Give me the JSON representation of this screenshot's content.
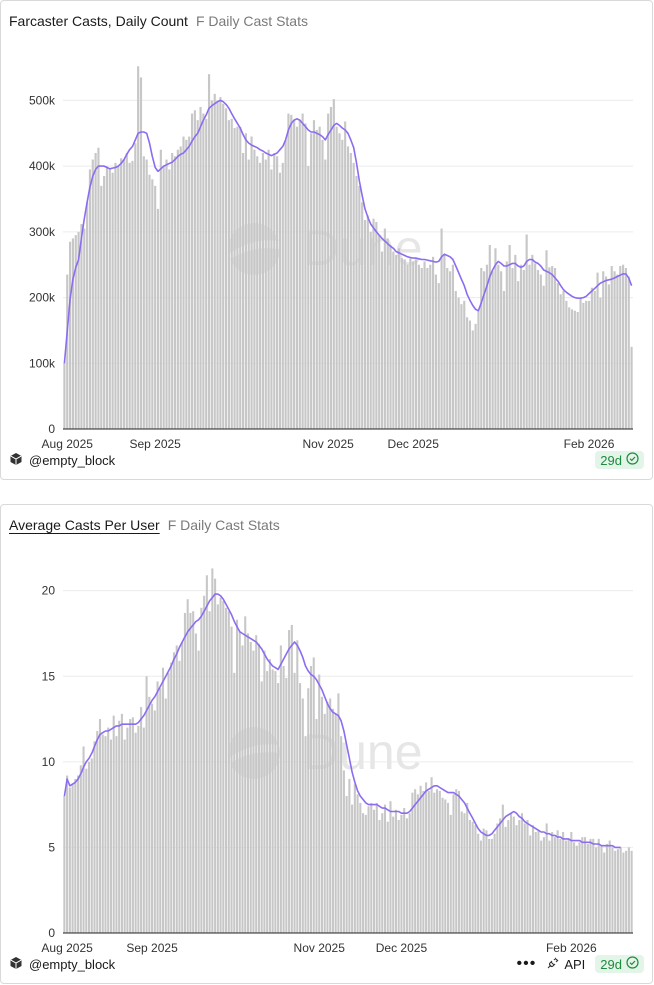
{
  "colors": {
    "bar": "#c7c7c7",
    "line": "#8c6cf0",
    "grid": "#ececec",
    "axis": "#222222",
    "tick": "#333333",
    "watermark": "#e6e6e6",
    "badge_text": "#1f8a3e",
    "badge_bg": "#e3f4e8"
  },
  "panels": [
    {
      "title": "Farcaster Casts, Daily Count",
      "subtitle": "F Daily Cast Stats",
      "author": "@empty_block",
      "badge": "29d",
      "watermark": "Dune",
      "show_api": false
    },
    {
      "title": "Average Casts Per User",
      "subtitle": "F Daily Cast Stats",
      "author": "@empty_block",
      "badge": "29d",
      "watermark": "Dune",
      "show_api": true,
      "api_label": "API"
    }
  ],
  "icons": [
    "cube-icon",
    "check-circle-icon",
    "more-icon",
    "api-icon"
  ],
  "chart_data": [
    {
      "type": "bar",
      "series_line": "moving average",
      "x_start": "2025-07-31",
      "x_ticks": [
        "Aug 2025",
        "Sep 2025",
        "Nov 2025",
        "Dec 2025",
        "Feb 2026"
      ],
      "x_tick_dates": [
        "2025-08-01",
        "2025-09-01",
        "2025-11-01",
        "2025-12-01",
        "2026-02-01"
      ],
      "y_ticks": [
        "0",
        "100k",
        "200k",
        "300k",
        "400k",
        "500k"
      ],
      "y_tick_values": [
        0,
        100000,
        200000,
        300000,
        400000,
        500000
      ],
      "ylim": [
        0,
        560000
      ],
      "grid": true,
      "values": [
        100000,
        235000,
        285000,
        290000,
        295000,
        300000,
        312000,
        305000,
        345000,
        395000,
        410000,
        420000,
        428000,
        370000,
        385000,
        400000,
        395000,
        390000,
        405000,
        400000,
        412000,
        410000,
        420000,
        405000,
        408000,
        435000,
        552000,
        535000,
        415000,
        410000,
        387000,
        380000,
        370000,
        335000,
        425000,
        400000,
        410000,
        395000,
        420000,
        415000,
        425000,
        430000,
        445000,
        440000,
        445000,
        480000,
        485000,
        470000,
        490000,
        480000,
        472000,
        540000,
        500000,
        510000,
        500000,
        505000,
        495000,
        488000,
        470000,
        472000,
        458000,
        460000,
        460000,
        420000,
        450000,
        410000,
        445000,
        425000,
        415000,
        405000,
        420000,
        410000,
        425000,
        395000,
        420000,
        415000,
        390000,
        405000,
        440000,
        480000,
        478000,
        470000,
        460000,
        470000,
        480000,
        465000,
        400000,
        450000,
        470000,
        455000,
        460000,
        440000,
        410000,
        480000,
        490000,
        502000,
        460000,
        450000,
        440000,
        468000,
        430000,
        420000,
        405000,
        385000,
        370000,
        345000,
        318000,
        325000,
        300000,
        320000,
        315000,
        295000,
        270000,
        305000,
        290000,
        280000,
        270000,
        265000,
        275000,
        260000,
        258000,
        250000,
        260000,
        255000,
        258000,
        250000,
        245000,
        255000,
        245000,
        250000,
        262000,
        235000,
        222000,
        305000,
        265000,
        245000,
        240000,
        250000,
        210000,
        200000,
        190000,
        195000,
        170000,
        165000,
        150000,
        160000,
        180000,
        245000,
        240000,
        250000,
        280000,
        240000,
        275000,
        250000,
        240000,
        210000,
        255000,
        280000,
        245000,
        265000,
        225000,
        250000,
        242000,
        296000,
        250000,
        265000,
        252000,
        242000,
        235000,
        218000,
        272000,
        246000,
        248000,
        245000,
        222000,
        205000,
        210000,
        195000,
        185000,
        182000,
        180000,
        178000,
        200000,
        192000,
        195000,
        195000,
        215000,
        210000,
        238000,
        200000,
        240000,
        232000,
        220000,
        248000,
        240000,
        235000,
        248000,
        250000,
        245000,
        232000,
        125000
      ],
      "ma": [
        100000,
        150000,
        198000,
        228000,
        246000,
        258000,
        290000,
        320000,
        345000,
        368000,
        385000,
        395000,
        400000,
        400000,
        400000,
        398000,
        396000,
        397000,
        398000,
        400000,
        404000,
        410000,
        418000,
        425000,
        430000,
        440000,
        450000,
        452000,
        452000,
        450000,
        435000,
        415000,
        398000,
        392000,
        396000,
        400000,
        402000,
        404000,
        406000,
        410000,
        415000,
        418000,
        420000,
        425000,
        430000,
        438000,
        445000,
        450000,
        460000,
        470000,
        478000,
        488000,
        492000,
        495000,
        498000,
        500000,
        498000,
        494000,
        488000,
        480000,
        472000,
        465000,
        458000,
        448000,
        440000,
        435000,
        432000,
        430000,
        428000,
        425000,
        423000,
        420000,
        418000,
        416000,
        418000,
        420000,
        425000,
        430000,
        440000,
        455000,
        465000,
        470000,
        472000,
        470000,
        465000,
        460000,
        455000,
        452000,
        452000,
        450000,
        448000,
        445000,
        440000,
        448000,
        455000,
        462000,
        465000,
        462000,
        458000,
        455000,
        450000,
        440000,
        428000,
        405000,
        378000,
        355000,
        335000,
        322000,
        312000,
        306000,
        300000,
        295000,
        290000,
        286000,
        282000,
        278000,
        275000,
        270000,
        268000,
        266000,
        264000,
        262000,
        261000,
        260000,
        260000,
        259000,
        258000,
        258000,
        257000,
        256000,
        255000,
        254000,
        255000,
        262000,
        266000,
        264000,
        262000,
        258000,
        248000,
        238000,
        228000,
        218000,
        205000,
        196000,
        188000,
        182000,
        180000,
        192000,
        205000,
        218000,
        232000,
        242000,
        250000,
        255000,
        252000,
        248000,
        248000,
        250000,
        252000,
        252000,
        248000,
        246000,
        248000,
        255000,
        258000,
        258000,
        254000,
        252000,
        248000,
        242000,
        240000,
        238000,
        235000,
        230000,
        225000,
        218000,
        212000,
        208000,
        205000,
        202000,
        200000,
        199000,
        199000,
        200000,
        202000,
        206000,
        210000,
        214000,
        218000,
        222000,
        224000,
        226000,
        227000,
        228000,
        230000,
        232000,
        234000,
        236000,
        236000,
        230000,
        218000
      ]
    },
    {
      "type": "bar",
      "series_line": "moving average",
      "x_start": "2025-07-31",
      "x_ticks": [
        "Aug 2025",
        "Sep 2025",
        "Nov 2025",
        "Dec 2025",
        "Feb 2026"
      ],
      "x_tick_dates": [
        "2025-08-01",
        "2025-09-01",
        "2025-11-01",
        "2025-12-01",
        "2026-02-01"
      ],
      "y_ticks": [
        "0",
        "5",
        "10",
        "15",
        "20"
      ],
      "y_tick_values": [
        0,
        5,
        10,
        15,
        20
      ],
      "ylim": [
        0,
        21.5
      ],
      "grid": true,
      "values": [
        8,
        9.2,
        8.5,
        8.7,
        9,
        9.2,
        9.8,
        10.9,
        9.6,
        10,
        10.2,
        11.2,
        11.8,
        12.5,
        11.6,
        11.5,
        12,
        11.3,
        12.7,
        11.5,
        12.4,
        12.8,
        11.3,
        12,
        12.5,
        12.6,
        11.7,
        12.1,
        13.2,
        12,
        15,
        13.8,
        13.4,
        13,
        14.7,
        14.3,
        15.5,
        13.7,
        15.2,
        15.8,
        16.4,
        16.8,
        15.9,
        17,
        18.7,
        19.5,
        18.7,
        18.8,
        17.5,
        16.5,
        19,
        19.7,
        20.9,
        18.8,
        21.3,
        20.7,
        19.2,
        19.6,
        19.4,
        19,
        18.8,
        17.9,
        15.2,
        18.3,
        17.6,
        16.8,
        18.5,
        17.5,
        17,
        16.5,
        17.4,
        16.9,
        14.7,
        16.5,
        15.3,
        16,
        15.4,
        15.3,
        14.6,
        16.8,
        15.6,
        14.9,
        17.7,
        18,
        15.2,
        17.1,
        14.6,
        13.7,
        11.5,
        14.3,
        15.6,
        16.1,
        12.5,
        15.1,
        13.8,
        12.8,
        13.5,
        13.7,
        13.1,
        12.8,
        14,
        11.5,
        9.5,
        8,
        9,
        7.5,
        8.7,
        8.1,
        7.6,
        7,
        6.9,
        7.4,
        7.6,
        7.2,
        7.6,
        6.6,
        7,
        7.5,
        6.5,
        7.7,
        6.8,
        7.2,
        6.6,
        6.9,
        7.3,
        6.7,
        7,
        8.2,
        8.4,
        8.1,
        8.6,
        8.3,
        8.8,
        8.3,
        9.1,
        8.2,
        8.4,
        8.3,
        7.9,
        7.8,
        7.6,
        6.9,
        8.1,
        8.4,
        8.3,
        7.1,
        7,
        7.6,
        6.6,
        6.5,
        6.3,
        5.8,
        5.4,
        6.1,
        6,
        5.5,
        5.5,
        5.8,
        6.4,
        6.7,
        7.5,
        6.2,
        6.6,
        7,
        6.8,
        6.3,
        6.6,
        7,
        6.4,
        6.6,
        5.7,
        6.3,
        5.9,
        6,
        5.4,
        5.6,
        6.4,
        5.4,
        5.9,
        5.6,
        6,
        5.5,
        5.9,
        5.4,
        5.5,
        5.9,
        5.3,
        5.1,
        5.3,
        5.6,
        5.6,
        5.2,
        5.5,
        5.5,
        5,
        5.5,
        5.1,
        4.7,
        5.2,
        5.4,
        5,
        4.8,
        4.9,
        5,
        4.7,
        4.8,
        5,
        4.8
      ],
      "ma": [
        8,
        9,
        8.6,
        8.7,
        8.8,
        9,
        9.3,
        9.7,
        10,
        10.2,
        10.5,
        10.9,
        11.3,
        11.6,
        11.7,
        11.8,
        11.8,
        11.9,
        12,
        12.1,
        12.1,
        12.2,
        12.2,
        12.2,
        12.2,
        12.2,
        12.2,
        12.3,
        12.5,
        12.7,
        13,
        13.3,
        13.6,
        13.8,
        14.1,
        14.4,
        14.7,
        15,
        15.3,
        15.6,
        16,
        16.3,
        16.7,
        17,
        17.3,
        17.6,
        17.8,
        18,
        18.2,
        18.3,
        18.5,
        18.8,
        19.1,
        19.4,
        19.6,
        19.8,
        19.8,
        19.7,
        19.5,
        19.2,
        18.9,
        18.6,
        18.2,
        17.9,
        17.6,
        17.5,
        17.4,
        17.3,
        17.2,
        17.1,
        17,
        16.8,
        16.6,
        16.3,
        16,
        15.8,
        15.6,
        15.5,
        15.4,
        15.7,
        16,
        16.3,
        16.6,
        16.8,
        17,
        16.8,
        16.5,
        16.1,
        15.6,
        15.3,
        15.1,
        15,
        14.8,
        14.5,
        14.2,
        13.8,
        13.4,
        13.1,
        12.9,
        12.8,
        12.7,
        12.4,
        11.8,
        11,
        10.2,
        9.4,
        8.8,
        8.3,
        8,
        7.8,
        7.6,
        7.5,
        7.5,
        7.5,
        7.5,
        7.4,
        7.3,
        7.3,
        7.2,
        7.1,
        7.1,
        7.1,
        7.1,
        7,
        7,
        7,
        7.1,
        7.3,
        7.5,
        7.7,
        7.9,
        8.1,
        8.3,
        8.4,
        8.5,
        8.6,
        8.6,
        8.5,
        8.4,
        8.3,
        8.2,
        8.2,
        8.2,
        8.1,
        8,
        7.8,
        7.6,
        7.3,
        7,
        6.7,
        6.4,
        6.1,
        5.9,
        5.8,
        5.7,
        5.7,
        5.8,
        6,
        6.2,
        6.4,
        6.6,
        6.8,
        6.9,
        7,
        7.1,
        7,
        6.8,
        6.7,
        6.5,
        6.4,
        6.3,
        6.2,
        6.1,
        6,
        5.9,
        5.9,
        5.8,
        5.8,
        5.7,
        5.7,
        5.6,
        5.6,
        5.5,
        5.5,
        5.5,
        5.4,
        5.4,
        5.4,
        5.4,
        5.3,
        5.3,
        5.3,
        5.3,
        5.2,
        5.2,
        5.2,
        5.1,
        5.1,
        5.1,
        5.1,
        5.1,
        5,
        5,
        5
      ]
    }
  ]
}
